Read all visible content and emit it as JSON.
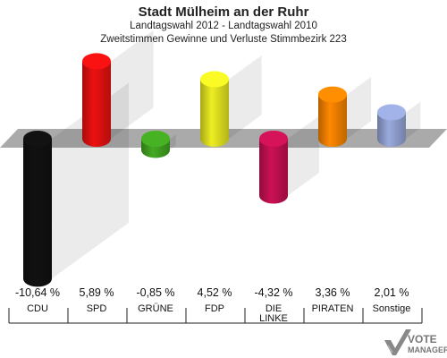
{
  "header": {
    "title": "Stadt Mülheim an der Ruhr",
    "subtitle": "Landtagswahl 2012 - Landtagswahl 2010",
    "subtitle2": "Zweitstimmen Gewinne und Verluste Stimmbezirk 223"
  },
  "chart_data": {
    "type": "bar",
    "title": "Stadt Mülheim an der Ruhr",
    "categories": [
      "CDU",
      "SPD",
      "GRÜNE",
      "FDP",
      "DIE LINKE",
      "PIRATEN",
      "Sonstige"
    ],
    "category_lines": [
      [
        "CDU"
      ],
      [
        "SPD"
      ],
      [
        "GRÜNE"
      ],
      [
        "FDP"
      ],
      [
        "DIE",
        "LINKE"
      ],
      [
        "PIRATEN"
      ],
      [
        "Sonstige"
      ]
    ],
    "values": [
      -10.64,
      5.89,
      -0.85,
      4.52,
      -4.32,
      3.36,
      2.01
    ],
    "value_labels": [
      "-10,64 %",
      "5,89 %",
      "-0,85 %",
      "4,52 %",
      "-4,32 %",
      "3,36 %",
      "2,01 %"
    ],
    "colors": [
      "#111111",
      "#ee1111",
      "#44aa22",
      "#eeee22",
      "#cc1155",
      "#ff8800",
      "#99aadd"
    ],
    "grid": false,
    "legend": "none"
  },
  "logo": {
    "text1": "VOTE",
    "text2": "MANAGER"
  }
}
